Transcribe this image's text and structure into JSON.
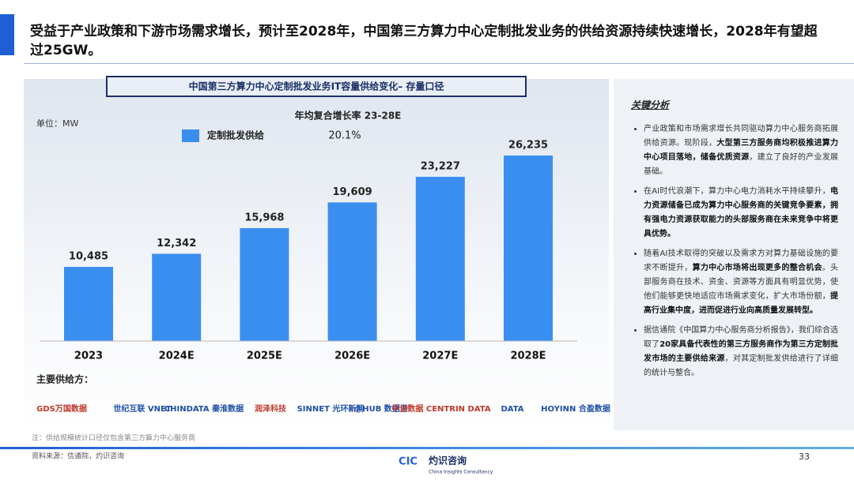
{
  "header": {
    "title": "受益于产业政策和下游市场需求增长，预计至2028年，中国第三方算力中心定制批发业务的供给资源持续快速增长，2028年有望超过25GW。"
  },
  "chart_data": {
    "type": "bar",
    "title": "中国第三方算力中心定制批发业务IT容量供给变化– 存量口径",
    "unit": "单位：MW",
    "annotation_title": "年均复合增长率 23-28E",
    "categories": [
      "2023",
      "2024E",
      "2025E",
      "2026E",
      "2027E",
      "2028E"
    ],
    "series": [
      {
        "name": "定制批发供给",
        "color": "#3a8ef0",
        "values": [
          10485,
          12342,
          15968,
          19609,
          23227,
          26235
        ],
        "value_labels": [
          "10,485",
          "12,342",
          "15,968",
          "19,609",
          "23,227",
          "26,235"
        ],
        "cagr": 20.1,
        "cagr_label": "20.1%"
      }
    ]
  },
  "suppliers": {
    "title": "主要供给方：",
    "names": [
      "GDS万国数据",
      "世纪互联 VNET",
      "CHINDATA 秦淮数据",
      "润泽科技",
      "SINNET 光环新网",
      "@HUB 数据港",
      "中金数据 CENTRIN DATA",
      "DATA",
      "HOYINN 合盈数据"
    ]
  },
  "sidebar": {
    "title": "关键分析",
    "bullets": [
      [
        {
          "text": "产业政策和市场需求增长共同驱动算力中心服务商拓展供给资源。现阶段，",
          "bold": false
        },
        {
          "text": "大型第三方服务商均积极推进算力中心项目落地，储备优质资源",
          "bold": true
        },
        {
          "text": "，建立了良好的产业发展基础。",
          "bold": false
        }
      ],
      [
        {
          "text": "在AI时代浪潮下，算力中心电力消耗水平持续攀升，",
          "bold": false
        },
        {
          "text": "电力资源储备已成为算力中心服务商的关键竞争要素，拥有强电力资源获取能力的头部服务商在未来竞争中将更具优势。",
          "bold": true
        }
      ],
      [
        {
          "text": "随着AI技术取得的突破以及需求方对算力基础设施的要求不断提升，",
          "bold": false
        },
        {
          "text": "算力中心市场将出现更多的整合机会",
          "bold": true
        },
        {
          "text": "。头部服务商在技术、资金、资源等方面具有明显优势，使他们能够更快地适应市场需求变化，扩大市场份额，",
          "bold": false
        },
        {
          "text": "提高行业集中度，进而促进行业向高质量发展转型。",
          "bold": true
        }
      ],
      [
        {
          "text": "据信通院《中国算力中心服务商分析报告》，我们综合选取了",
          "bold": false
        },
        {
          "text": "20家具备代表性的第三方服务商作为第三方定制批发市场的主要供给来源",
          "bold": true
        },
        {
          "text": "，对其定制批发供给进行了详细的统计与整合。",
          "bold": false
        }
      ]
    ]
  },
  "footer": {
    "note": "注：供给规模统计口径仅包含第三方算力中心服务商",
    "source": "资料来源：信通院，灼识咨询",
    "page": "33",
    "logo_mark": "CIC",
    "logo_name": "灼识咨询",
    "logo_en": "China Insights Consultancy"
  }
}
